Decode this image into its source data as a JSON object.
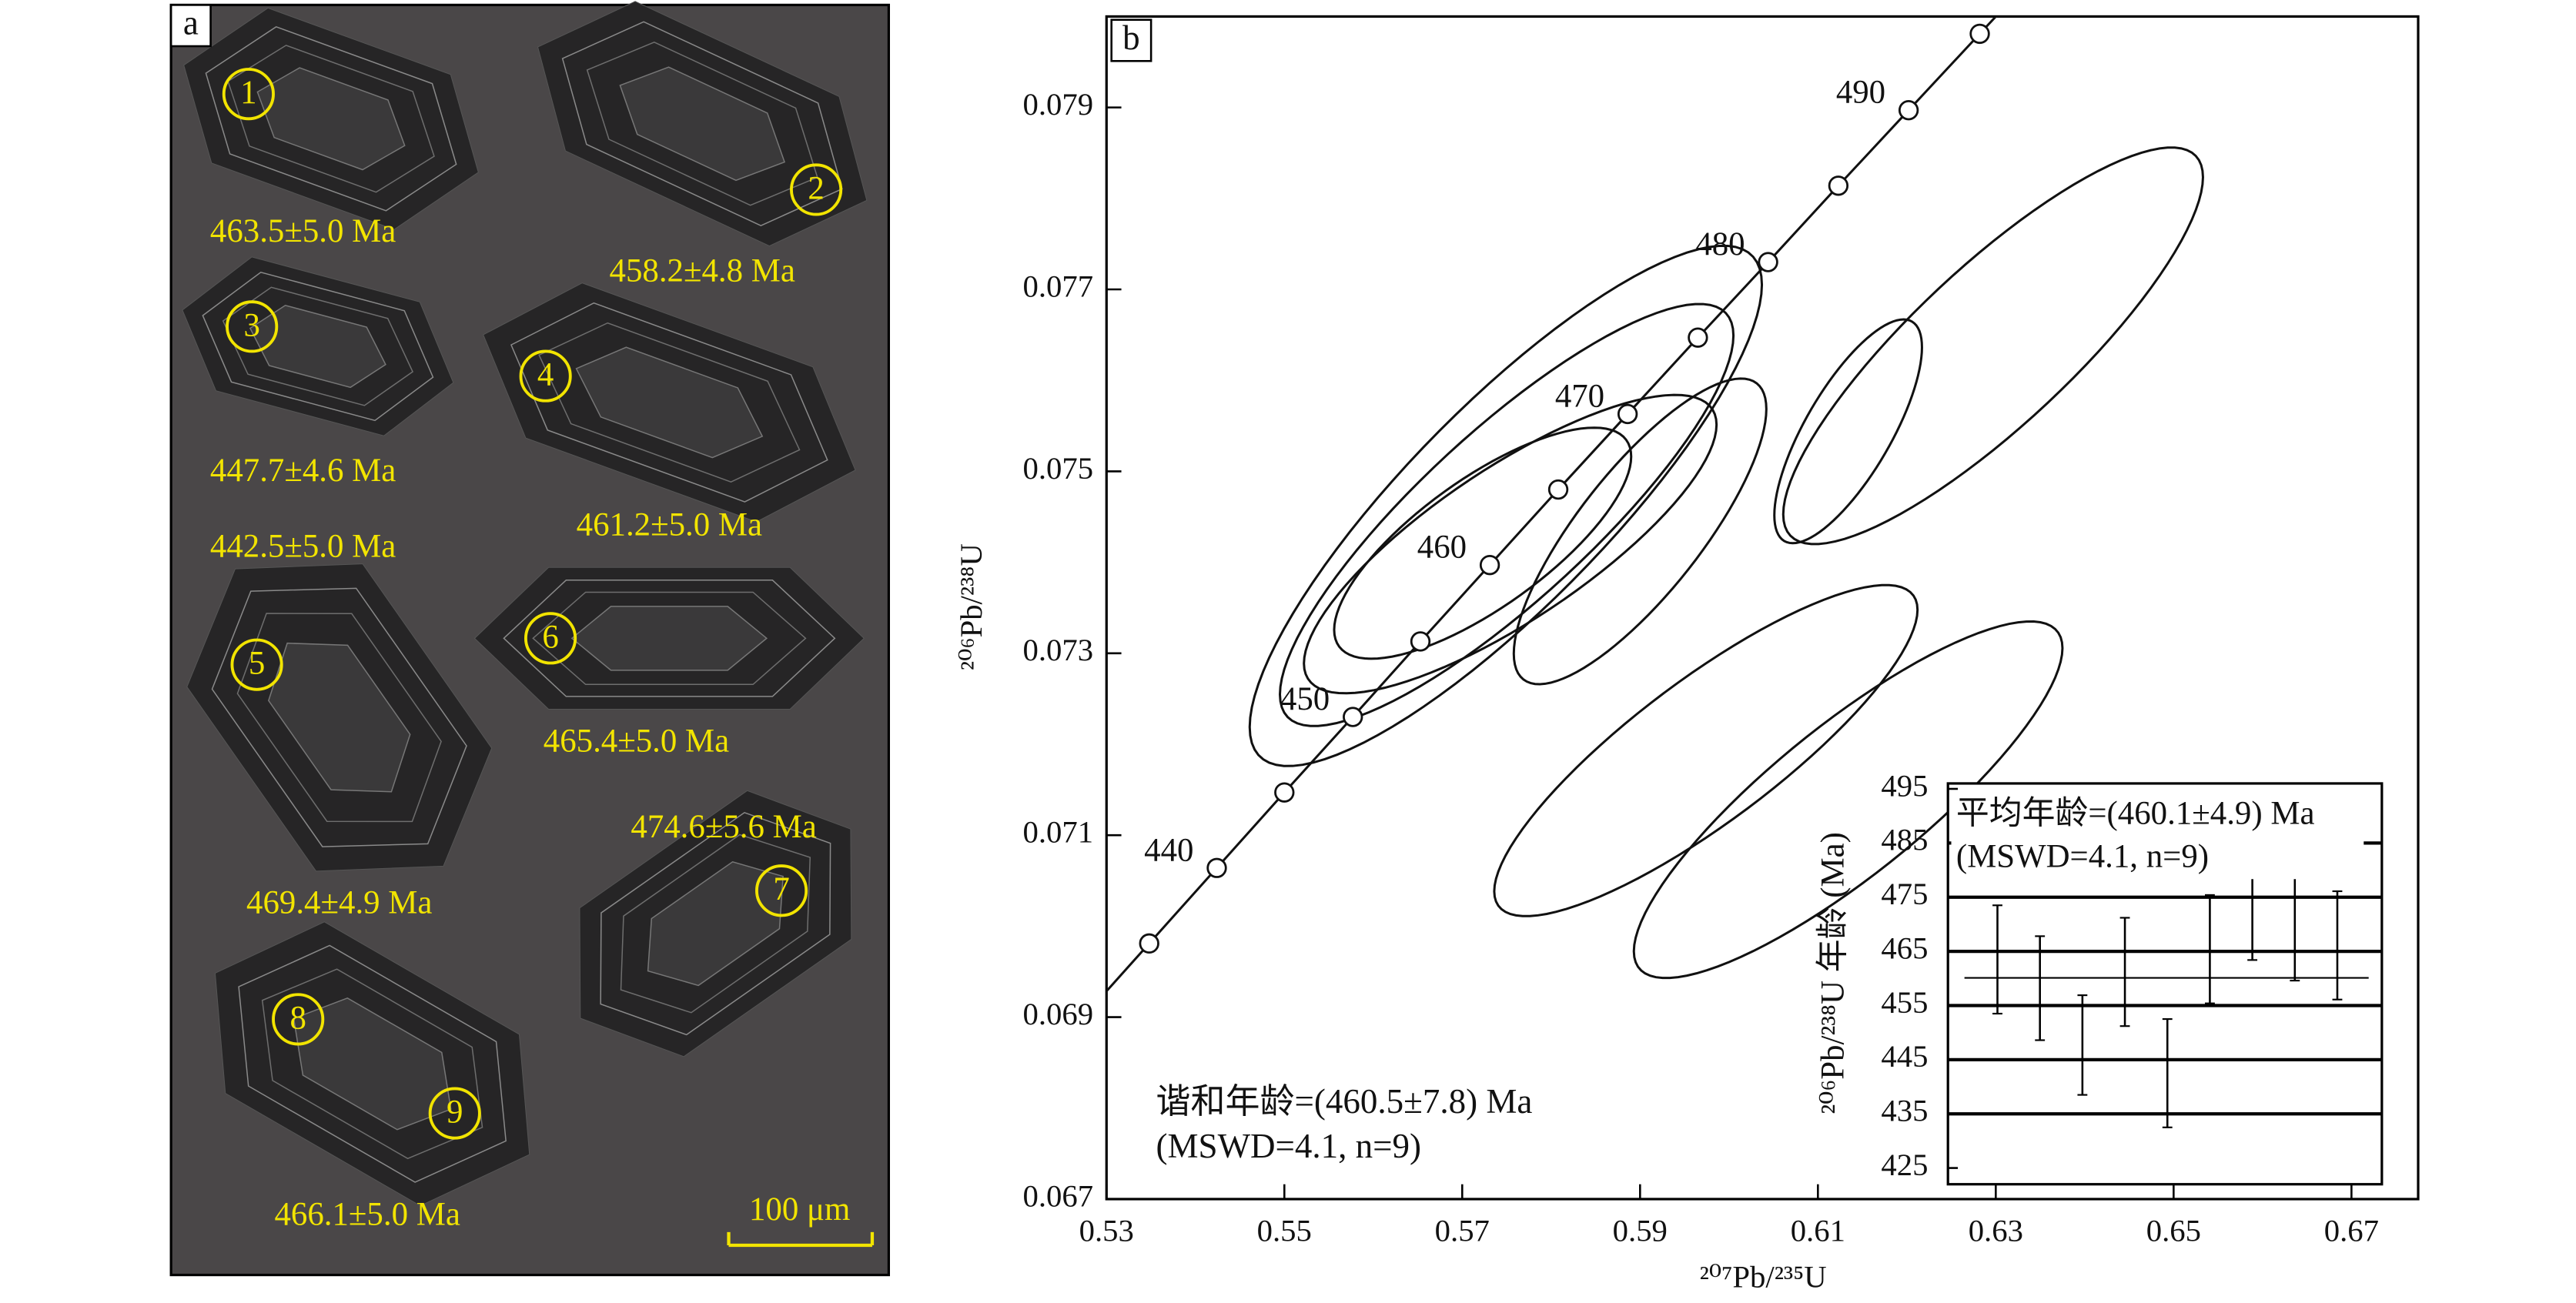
{
  "panel_a": {
    "label": "a",
    "grains": [
      {
        "number": "1",
        "age": "463.5±5.0 Ma"
      },
      {
        "number": "2",
        "age": "458.2±4.8 Ma"
      },
      {
        "number": "3",
        "age": "447.7±4.6 Ma"
      },
      {
        "number": "4",
        "age": "461.2±5.0 Ma"
      },
      {
        "number": "5",
        "age": "442.5±5.0 Ma"
      },
      {
        "number": "6",
        "age": "465.4±5.0 Ma"
      },
      {
        "number": "7",
        "age": "474.6±5.6 Ma"
      },
      {
        "number": "8",
        "age": "469.4±4.9 Ma"
      },
      {
        "number": "9",
        "age": "466.1±5.0 Ma"
      }
    ],
    "scale_bar": "100 μm"
  },
  "chart_data": [
    {
      "type": "concordia",
      "label": "b",
      "xlabel": "²⁰⁷Pb/²³⁵U",
      "ylabel": "²⁰⁶Pb/²³⁸U",
      "xlim": [
        0.53,
        0.6775
      ],
      "ylim": [
        0.067,
        0.08
      ],
      "xticks": [
        0.53,
        0.55,
        0.57,
        0.59,
        0.61,
        0.63,
        0.65,
        0.67
      ],
      "yticks": [
        0.067,
        0.069,
        0.071,
        0.073,
        0.075,
        0.077,
        0.079
      ],
      "concordia": {
        "x": [
          0.5348,
          0.5424,
          0.55,
          0.5577,
          0.5653,
          0.5731,
          0.5808,
          0.5886,
          0.5965,
          0.6044,
          0.6123,
          0.6202,
          0.6282
        ],
        "y": [
          0.06981,
          0.07064,
          0.07147,
          0.0723,
          0.07313,
          0.07397,
          0.0748,
          0.07563,
          0.07647,
          0.0773,
          0.07814,
          0.07897,
          0.07981
        ],
        "labels": [
          null,
          440,
          null,
          450,
          null,
          460,
          null,
          470,
          null,
          480,
          null,
          490,
          null
        ]
      },
      "ellipses": [
        {
          "x": 0.5749,
          "y": 0.07462,
          "x_err": 0.0288,
          "y_err": 0.00286,
          "rho": 0.85
        },
        {
          "x": 0.575,
          "y": 0.07452,
          "x_err": 0.0255,
          "y_err": 0.00232,
          "rho": 0.85
        },
        {
          "x": 0.5754,
          "y": 0.0742,
          "x_err": 0.0232,
          "y_err": 0.00164,
          "rho": 0.8
        },
        {
          "x": 0.5723,
          "y": 0.07421,
          "x_err": 0.0167,
          "y_err": 0.00127,
          "rho": 0.75
        },
        {
          "x": 0.59,
          "y": 0.07434,
          "x_err": 0.0142,
          "y_err": 0.00168,
          "rho": 0.8
        },
        {
          "x": 0.6134,
          "y": 0.07544,
          "x_err": 0.0083,
          "y_err": 0.00123,
          "rho": 0.75
        },
        {
          "x": 0.6297,
          "y": 0.07638,
          "x_err": 0.0236,
          "y_err": 0.00218,
          "rho": 0.85
        },
        {
          "x": 0.5974,
          "y": 0.07193,
          "x_err": 0.0238,
          "y_err": 0.00182,
          "rho": 0.85
        },
        {
          "x": 0.6134,
          "y": 0.07139,
          "x_err": 0.0241,
          "y_err": 0.00196,
          "rho": 0.85
        }
      ],
      "annotation": [
        "谐和年龄=(460.5±7.8) Ma",
        "(MSWD=4.1, n=9)"
      ]
    },
    {
      "type": "error_bar",
      "ylabel": "²⁰⁶Pb/²³⁸U 年龄 (Ma)",
      "ylim": [
        422,
        496
      ],
      "yticks": [
        425,
        435,
        445,
        455,
        465,
        475,
        485,
        495
      ],
      "grid": true,
      "values": [
        463.5,
        458.2,
        447.7,
        461.2,
        442.5,
        465.4,
        474.6,
        469.4,
        466.1
      ],
      "errors": [
        10.0,
        9.6,
        9.2,
        10.0,
        10.0,
        10.0,
        11.2,
        9.8,
        10.0
      ],
      "mean": 460.1,
      "annotation": [
        "平均年龄=(460.1±4.9) Ma",
        "(MSWD=4.1, n=9)"
      ]
    }
  ]
}
